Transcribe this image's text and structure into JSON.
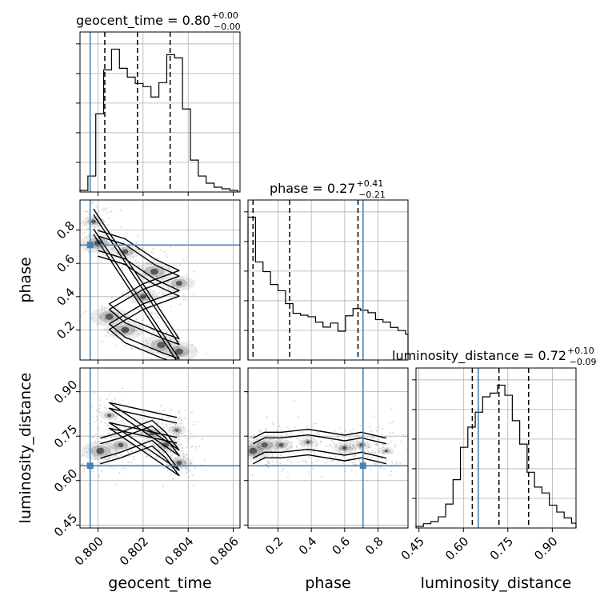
{
  "chart_data": {
    "type": "corner",
    "parameters": [
      "geocent_time",
      "phase",
      "luminosity_distance"
    ],
    "truths": {
      "geocent_time": 0.79965,
      "phase": 0.71,
      "luminosity_distance": 0.65
    },
    "truth_color": "#4682b4",
    "axis_labels": {
      "geocent_time": "geocent_time",
      "phase": "phase",
      "luminosity_distance": "luminosity_distance"
    },
    "titles": [
      {
        "param": "geocent_time",
        "text": "geocent_time = 0.80",
        "sup": "+0.00",
        "sub": "−0.00"
      },
      {
        "param": "phase",
        "text": "phase = 0.27",
        "sup": "+0.41",
        "sub": "−0.21"
      },
      {
        "param": "luminosity_distance",
        "text": "luminosity_distance = 0.72",
        "sup": "+0.10",
        "sub": "−0.09"
      }
    ],
    "ranges": {
      "geocent_time": [
        0.7992,
        0.8063
      ],
      "phase": [
        0.02,
        0.98
      ],
      "luminosity_distance": [
        0.44,
        0.98
      ]
    },
    "ticks": {
      "geocent_time": [
        0.8,
        0.802,
        0.804,
        0.806
      ],
      "geocent_time_labels": [
        "0.800",
        "0.802",
        "0.804",
        "0.806"
      ],
      "phase": [
        0.2,
        0.4,
        0.6,
        0.8
      ],
      "phase_labels": [
        "0.2",
        "0.4",
        "0.6",
        "0.8"
      ],
      "luminosity_distance": [
        0.45,
        0.6,
        0.75,
        0.9
      ],
      "luminosity_distance_labels": [
        "0.45",
        "0.60",
        "0.75",
        "0.90"
      ]
    },
    "quantiles": {
      "geocent_time": [
        0.8003,
        0.80175,
        0.8032
      ],
      "phase": [
        0.05,
        0.27,
        0.68
      ],
      "luminosity_distance": [
        0.63,
        0.72,
        0.82
      ]
    },
    "histograms": {
      "geocent_time": {
        "edges": [
          0.7992,
          0.79955,
          0.7999,
          0.80025,
          0.8006,
          0.80095,
          0.8013,
          0.80165,
          0.802,
          0.80235,
          0.8027,
          0.80305,
          0.8034,
          0.80375,
          0.8041,
          0.80445,
          0.8048,
          0.80515,
          0.8055,
          0.80585,
          0.8062
        ],
        "counts": [
          0.2,
          2.0,
          9.8,
          15.3,
          17.9,
          15.5,
          14.4,
          13.6,
          13.2,
          11.9,
          13.7,
          17.2,
          16.8,
          10.4,
          4.0,
          2.0,
          1.1,
          0.6,
          0.4,
          0.2
        ]
      },
      "phase": {
        "edges": [
          0.02,
          0.065,
          0.11,
          0.155,
          0.2,
          0.245,
          0.29,
          0.335,
          0.38,
          0.425,
          0.47,
          0.515,
          0.56,
          0.605,
          0.65,
          0.695,
          0.74,
          0.785,
          0.83,
          0.875,
          0.92,
          0.965,
          0.98
        ],
        "counts": [
          45.6,
          31.3,
          28.2,
          24.1,
          22.1,
          18.0,
          14.9,
          14.3,
          13.8,
          12.1,
          10.5,
          11.8,
          9.2,
          14.1,
          16.4,
          15.9,
          15.1,
          12.9,
          12.1,
          10.4,
          9.4,
          8.2
        ]
      },
      "luminosity_distance": {
        "edges": [
          0.44,
          0.465,
          0.49,
          0.515,
          0.54,
          0.565,
          0.59,
          0.615,
          0.64,
          0.665,
          0.69,
          0.715,
          0.74,
          0.765,
          0.79,
          0.815,
          0.84,
          0.865,
          0.89,
          0.915,
          0.94,
          0.965,
          0.98
        ],
        "counts": [
          0.3,
          0.8,
          1.2,
          2.1,
          4.5,
          9.1,
          15.2,
          19.0,
          21.8,
          24.7,
          25.4,
          26.9,
          25.0,
          20.2,
          15.8,
          10.5,
          7.7,
          6.6,
          4.3,
          3.0,
          1.9,
          0.9
        ]
      }
    },
    "density_modes": [
      {
        "x": "geocent_time",
        "y": "phase",
        "centers": [
          [
            0.8,
            0.72,
            1.0
          ],
          [
            0.8012,
            0.67,
            0.8
          ],
          [
            0.8025,
            0.55,
            1.0
          ],
          [
            0.8036,
            0.48,
            0.8
          ],
          [
            0.802,
            0.4,
            0.8
          ],
          [
            0.8005,
            0.28,
            1.0
          ],
          [
            0.8012,
            0.2,
            1.0
          ],
          [
            0.8028,
            0.11,
            1.0
          ],
          [
            0.8036,
            0.07,
            1.0
          ],
          [
            0.7998,
            0.85,
            0.6
          ]
        ]
      },
      {
        "x": "geocent_time",
        "y": "luminosity_distance",
        "centers": [
          [
            0.8001,
            0.7,
            1.0
          ],
          [
            0.801,
            0.72,
            0.7
          ],
          [
            0.8024,
            0.76,
            0.7
          ],
          [
            0.803,
            0.72,
            0.8
          ],
          [
            0.8036,
            0.66,
            0.7
          ],
          [
            0.8005,
            0.82,
            0.5
          ],
          [
            0.8035,
            0.77,
            0.5
          ]
        ]
      },
      {
        "x": "phase",
        "y": "luminosity_distance",
        "centers": [
          [
            0.05,
            0.7,
            1.0
          ],
          [
            0.12,
            0.72,
            0.8
          ],
          [
            0.22,
            0.72,
            0.6
          ],
          [
            0.38,
            0.73,
            0.5
          ],
          [
            0.6,
            0.71,
            0.6
          ],
          [
            0.7,
            0.72,
            0.5
          ],
          [
            0.85,
            0.7,
            0.4
          ]
        ]
      }
    ],
    "grid": true
  }
}
